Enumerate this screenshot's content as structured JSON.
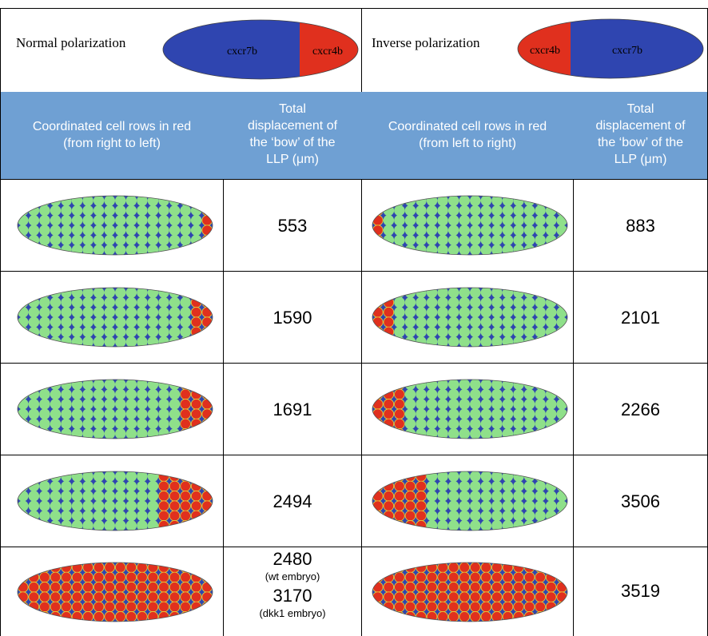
{
  "polarization": {
    "normal": {
      "label": "Normal polarization",
      "left_segment": "cxcr7b",
      "right_segment": "cxcr4b"
    },
    "inverse": {
      "label": "Inverse polarization",
      "left_segment": "cxcr4b",
      "right_segment": "cxcr7b"
    }
  },
  "colors": {
    "blue": "#2f45b0",
    "red": "#e0301e",
    "green": "#8fe08a",
    "header_bg": "#6fa0d3"
  },
  "headers": {
    "col1": [
      "Coordinated cell rows in red",
      "(from right to left)"
    ],
    "col2": [
      "Total",
      "displacement of",
      "the ‘bow’ of the",
      "LLP (μm)"
    ],
    "col3": [
      "Coordinated cell rows in red",
      "(from left to right)"
    ],
    "col4": [
      "Total",
      "displacement of",
      "the ‘bow’ of the",
      "LLP (μm)"
    ]
  },
  "rows": [
    {
      "red_rows": 1,
      "normal_value": "553",
      "inverse_value": "883"
    },
    {
      "red_rows": 2,
      "normal_value": "1590",
      "inverse_value": "2101"
    },
    {
      "red_rows": 3,
      "normal_value": "1691",
      "inverse_value": "2266"
    },
    {
      "red_rows": 5,
      "normal_value": "2494",
      "inverse_value": "3506"
    },
    {
      "red_rows": "all",
      "normal_value": "2480",
      "normal_note": "(wt embryo)",
      "normal_value_2": "3170",
      "normal_note_2": "(dkk1 embryo)",
      "inverse_value": "3519"
    }
  ]
}
